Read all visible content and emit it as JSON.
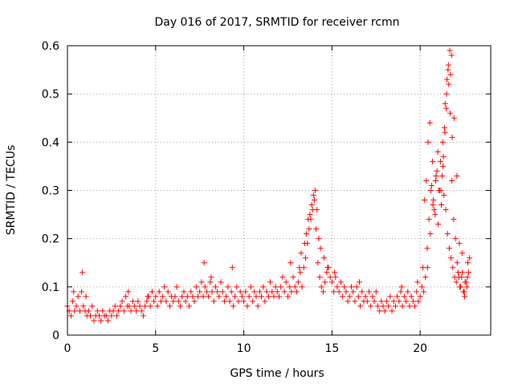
{
  "chart_data": {
    "type": "scatter",
    "title": "Day 016 of 2017, SRMTID for receiver rcmn",
    "xlabel": "GPS time / hours",
    "ylabel": "SRMTID / TECUs",
    "xlim": [
      0,
      24
    ],
    "ylim": [
      0,
      0.6
    ],
    "xticks": [
      0,
      5,
      10,
      15,
      20
    ],
    "yticks": [
      0,
      0.1,
      0.2,
      0.3,
      0.4,
      0.5,
      0.6
    ],
    "xtick_labels": [
      "0",
      "5",
      "10",
      "15",
      "20"
    ],
    "ytick_labels": [
      "0",
      "0.1",
      "0.2",
      "0.3",
      "0.4",
      "0.5",
      "0.6"
    ],
    "grid": true,
    "marker": "+",
    "color": "#ff0000",
    "series": [
      {
        "name": "SRMTID",
        "x": [
          0.0,
          0.1,
          0.2,
          0.3,
          0.4,
          0.5,
          0.6,
          0.7,
          0.8,
          0.9,
          1.0,
          1.1,
          1.2,
          1.3,
          1.4,
          1.5,
          1.6,
          1.7,
          1.8,
          1.9,
          2.0,
          2.1,
          2.2,
          2.3,
          2.4,
          2.5,
          2.6,
          2.7,
          2.8,
          2.9,
          3.0,
          3.1,
          3.2,
          3.3,
          3.4,
          3.5,
          3.6,
          3.7,
          3.8,
          3.9,
          4.0,
          4.1,
          4.2,
          4.3,
          4.4,
          4.5,
          4.6,
          4.7,
          4.8,
          4.9,
          5.0,
          5.1,
          5.2,
          5.3,
          5.4,
          5.5,
          5.6,
          5.7,
          5.8,
          5.9,
          6.0,
          6.1,
          6.2,
          6.3,
          6.4,
          6.5,
          6.6,
          6.7,
          6.8,
          6.9,
          7.0,
          7.1,
          7.2,
          7.3,
          7.4,
          7.5,
          7.6,
          7.7,
          7.8,
          7.9,
          8.0,
          8.1,
          8.2,
          8.3,
          8.4,
          8.5,
          8.6,
          8.7,
          8.8,
          8.9,
          9.0,
          9.1,
          9.2,
          9.3,
          9.4,
          9.5,
          9.6,
          9.7,
          9.8,
          9.9,
          10.0,
          10.1,
          10.2,
          10.3,
          10.4,
          10.5,
          10.6,
          10.7,
          10.8,
          10.9,
          11.0,
          11.1,
          11.2,
          11.3,
          11.4,
          11.5,
          11.6,
          11.7,
          11.8,
          11.9,
          12.0,
          12.1,
          12.2,
          12.3,
          12.4,
          12.5,
          12.6,
          12.7,
          12.8,
          12.9,
          13.0,
          13.1,
          13.2,
          13.3,
          13.4,
          13.5,
          13.6,
          13.7,
          13.8,
          13.9,
          14.0,
          14.1,
          14.2,
          14.3,
          14.4,
          14.5,
          14.6,
          14.7,
          14.8,
          14.9,
          15.0,
          15.1,
          15.2,
          15.3,
          15.4,
          15.5,
          15.6,
          15.7,
          15.8,
          15.9,
          16.0,
          16.1,
          16.2,
          16.3,
          16.4,
          16.5,
          16.6,
          16.7,
          16.8,
          16.9,
          17.0,
          17.1,
          17.2,
          17.3,
          17.4,
          17.5,
          17.6,
          17.7,
          17.8,
          17.9,
          18.0,
          18.1,
          18.2,
          18.3,
          18.4,
          18.5,
          18.6,
          18.7,
          18.8,
          18.9,
          19.0,
          19.1,
          19.2,
          19.3,
          19.4,
          19.5,
          19.6,
          19.7,
          19.8,
          19.9,
          20.0,
          20.1,
          20.2,
          20.3,
          20.4,
          20.5,
          20.6,
          20.7,
          20.8,
          20.9,
          21.0,
          21.1,
          21.2,
          21.3,
          21.4,
          21.5,
          21.6,
          21.7,
          21.8,
          21.9,
          22.0,
          22.1,
          22.2,
          22.3,
          22.4,
          22.5,
          22.6,
          22.7,
          22.8,
          0.35,
          0.85,
          1.05,
          3.45,
          4.55,
          7.75,
          8.15,
          9.35,
          12.65,
          13.15,
          13.25,
          13.45,
          13.55,
          13.65,
          13.75,
          13.85,
          13.95,
          14.05,
          14.15,
          14.25,
          14.35,
          14.55,
          14.75,
          15.15,
          16.55,
          18.95,
          19.85,
          20.15,
          20.25,
          20.35,
          20.45,
          20.55,
          20.65,
          20.75,
          20.85,
          20.95,
          21.05,
          21.15,
          21.25,
          21.35,
          21.45,
          21.55,
          21.65,
          21.75,
          21.85,
          21.95,
          22.05,
          22.15,
          22.25,
          22.35,
          22.45,
          22.55,
          22.65,
          22.75,
          20.42,
          20.58,
          20.72,
          20.88,
          21.02,
          21.18,
          21.32,
          21.48,
          21.62,
          21.78,
          21.92,
          22.08,
          22.22,
          22.38,
          22.52,
          22.68,
          21.28,
          21.38,
          21.42,
          21.52,
          21.58,
          21.68,
          21.72,
          21.82
        ],
        "y": [
          0.06,
          0.05,
          0.04,
          0.07,
          0.05,
          0.06,
          0.08,
          0.05,
          0.09,
          0.06,
          0.05,
          0.04,
          0.05,
          0.04,
          0.06,
          0.03,
          0.04,
          0.05,
          0.04,
          0.03,
          0.05,
          0.04,
          0.04,
          0.03,
          0.05,
          0.04,
          0.05,
          0.06,
          0.04,
          0.05,
          0.06,
          0.07,
          0.05,
          0.08,
          0.06,
          0.06,
          0.05,
          0.07,
          0.06,
          0.05,
          0.07,
          0.06,
          0.05,
          0.04,
          0.06,
          0.07,
          0.08,
          0.06,
          0.09,
          0.07,
          0.08,
          0.06,
          0.09,
          0.07,
          0.08,
          0.1,
          0.07,
          0.09,
          0.06,
          0.08,
          0.07,
          0.08,
          0.1,
          0.07,
          0.06,
          0.08,
          0.09,
          0.07,
          0.08,
          0.06,
          0.09,
          0.08,
          0.07,
          0.1,
          0.08,
          0.09,
          0.11,
          0.08,
          0.1,
          0.09,
          0.08,
          0.11,
          0.09,
          0.07,
          0.1,
          0.09,
          0.08,
          0.11,
          0.09,
          0.07,
          0.08,
          0.1,
          0.07,
          0.09,
          0.06,
          0.08,
          0.1,
          0.07,
          0.09,
          0.08,
          0.07,
          0.09,
          0.06,
          0.08,
          0.1,
          0.07,
          0.09,
          0.08,
          0.06,
          0.09,
          0.08,
          0.1,
          0.07,
          0.09,
          0.08,
          0.11,
          0.09,
          0.08,
          0.1,
          0.09,
          0.08,
          0.1,
          0.12,
          0.09,
          0.11,
          0.08,
          0.1,
          0.09,
          0.12,
          0.1,
          0.09,
          0.11,
          0.13,
          0.1,
          0.14,
          0.16,
          0.19,
          0.22,
          0.24,
          0.26,
          0.28,
          0.22,
          0.15,
          0.12,
          0.1,
          0.09,
          0.11,
          0.13,
          0.14,
          0.12,
          0.11,
          0.09,
          0.12,
          0.1,
          0.09,
          0.11,
          0.08,
          0.1,
          0.09,
          0.07,
          0.08,
          0.1,
          0.09,
          0.07,
          0.1,
          0.08,
          0.06,
          0.09,
          0.07,
          0.08,
          0.07,
          0.09,
          0.06,
          0.08,
          0.07,
          0.09,
          0.06,
          0.05,
          0.07,
          0.06,
          0.05,
          0.07,
          0.06,
          0.08,
          0.05,
          0.07,
          0.06,
          0.08,
          0.07,
          0.09,
          0.06,
          0.08,
          0.07,
          0.09,
          0.06,
          0.08,
          0.07,
          0.06,
          0.09,
          0.07,
          0.08,
          0.1,
          0.09,
          0.12,
          0.18,
          0.24,
          0.3,
          0.36,
          0.26,
          0.33,
          0.38,
          0.3,
          0.27,
          0.35,
          0.42,
          0.5,
          0.56,
          0.46,
          0.32,
          0.24,
          0.2,
          0.15,
          0.12,
          0.1,
          0.13,
          0.09,
          0.11,
          0.15,
          0.16,
          0.09,
          0.13,
          0.08,
          0.09,
          0.08,
          0.15,
          0.12,
          0.14,
          0.15,
          0.14,
          0.17,
          0.19,
          0.21,
          0.24,
          0.25,
          0.27,
          0.29,
          0.3,
          0.26,
          0.2,
          0.18,
          0.16,
          0.14,
          0.13,
          0.11,
          0.1,
          0.11,
          0.14,
          0.28,
          0.32,
          0.4,
          0.44,
          0.31,
          0.28,
          0.25,
          0.34,
          0.3,
          0.36,
          0.33,
          0.29,
          0.26,
          0.21,
          0.18,
          0.16,
          0.14,
          0.12,
          0.11,
          0.13,
          0.1,
          0.12,
          0.09,
          0.11,
          0.1,
          0.13,
          0.14,
          0.21,
          0.27,
          0.32,
          0.23,
          0.3,
          0.37,
          0.47,
          0.52,
          0.58,
          0.45,
          0.33,
          0.19,
          0.17,
          0.08,
          0.12,
          0.4,
          0.43,
          0.48,
          0.53,
          0.55,
          0.59,
          0.54,
          0.41
        ]
      }
    ]
  }
}
